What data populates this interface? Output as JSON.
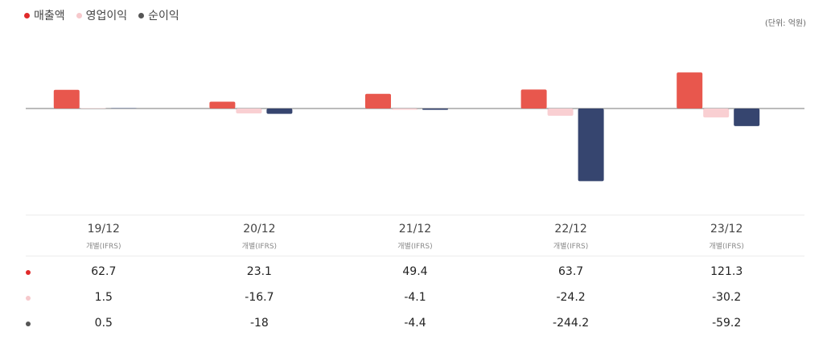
{
  "legend": [
    {
      "label": "매출액",
      "color": "#e74c3c"
    },
    {
      "label": "영업이익",
      "color": "#f9cfd2"
    },
    {
      "label": "순이익",
      "color": "#555555"
    }
  ],
  "unit": "(단위: 억원)",
  "colors": {
    "revenue": "#e8574d",
    "operating": "#f9cfd2",
    "net": "#36456f",
    "net_dot": "#555555",
    "revenue_dot": "#e02a2a",
    "operating_dot": "#f6c9cc"
  },
  "chart_data": {
    "type": "bar",
    "categories": [
      "19/12",
      "20/12",
      "21/12",
      "22/12",
      "23/12"
    ],
    "sub_labels": [
      "개별(IFRS)",
      "개별(IFRS)",
      "개별(IFRS)",
      "개별(IFRS)",
      "개별(IFRS)"
    ],
    "series": [
      {
        "name": "매출액",
        "values": [
          62.7,
          23.1,
          49.4,
          63.7,
          121.3
        ]
      },
      {
        "name": "영업이익",
        "values": [
          1.5,
          -16.7,
          -4.1,
          -24.2,
          -30.2
        ]
      },
      {
        "name": "순이익",
        "values": [
          0.5,
          -18,
          -4.4,
          -244.2,
          -59.2
        ]
      }
    ],
    "display_values": [
      [
        "62.7",
        "23.1",
        "49.4",
        "63.7",
        "121.3"
      ],
      [
        "1.5",
        "-16.7",
        "-4.1",
        "-24.2",
        "-30.2"
      ],
      [
        "0.5",
        "-18",
        "-4.4",
        "-244.2",
        "-59.2"
      ]
    ],
    "ylim": [
      -260,
      130
    ]
  }
}
